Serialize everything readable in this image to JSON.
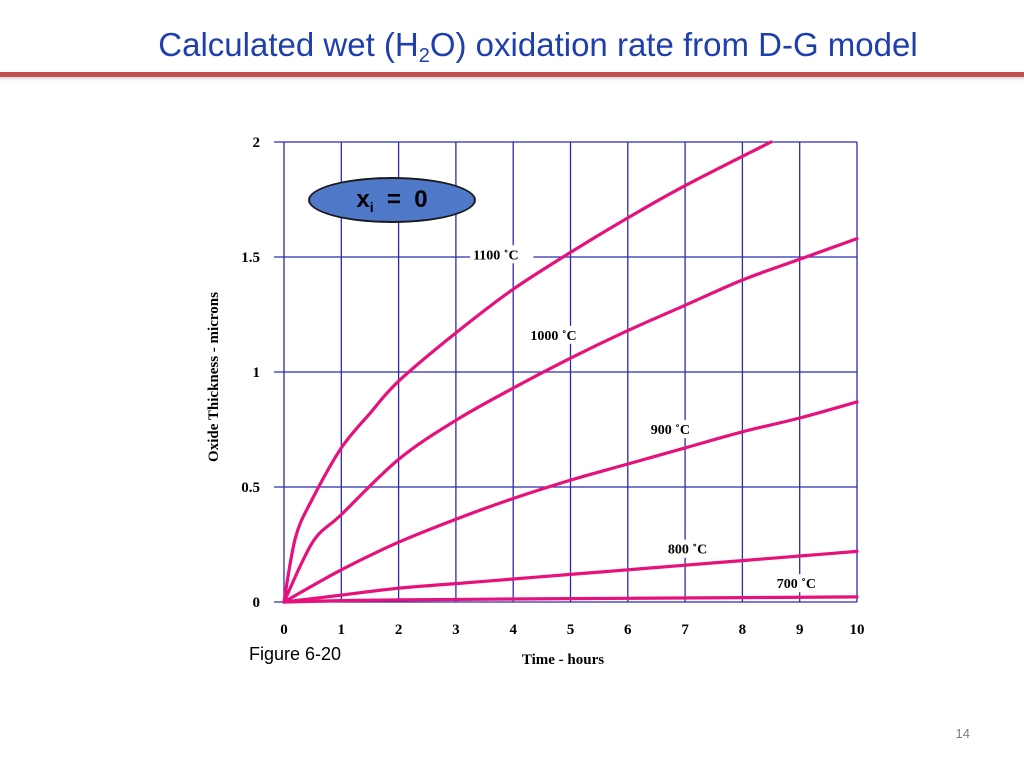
{
  "slide": {
    "title_before": "Calculated wet (H",
    "title_sub": "2",
    "title_after": "O) oxidation rate from D-G model",
    "figure_ref": "Figure 6-20",
    "page_number": "14",
    "title_color": "#1f3fae",
    "rule_color": "#c0504d"
  },
  "badge": {
    "symbol": "x",
    "subscript": "i",
    "rest": "  =  0",
    "fill_color": "#4f78c9"
  },
  "chart_data": {
    "type": "line",
    "title": "",
    "xlabel": "Time - hours",
    "ylabel": "Oxide Thickness - microns",
    "xlim": [
      0,
      10
    ],
    "ylim": [
      0,
      2
    ],
    "xticks": [
      0,
      1,
      2,
      3,
      4,
      5,
      6,
      7,
      8,
      9,
      10
    ],
    "yticks": [
      0,
      0.5,
      1,
      1.5,
      2
    ],
    "ytick_labels": [
      "0",
      "0.5",
      "1",
      "1.5",
      "2"
    ],
    "grid": true,
    "line_color": "#e6117a",
    "grid_color": "#2b2bb0",
    "series": [
      {
        "name": "1100 ˚C",
        "x": [
          0,
          0.2,
          0.5,
          1,
          1.5,
          2,
          3,
          4,
          5,
          6,
          7,
          8.5
        ],
        "y": [
          0,
          0.28,
          0.45,
          0.67,
          0.82,
          0.96,
          1.17,
          1.36,
          1.52,
          1.67,
          1.81,
          2.0
        ]
      },
      {
        "name": "1000 ˚C",
        "x": [
          0,
          0.5,
          1,
          2,
          3,
          4,
          5,
          6,
          7,
          8,
          9,
          10
        ],
        "y": [
          0,
          0.26,
          0.38,
          0.62,
          0.79,
          0.93,
          1.06,
          1.18,
          1.29,
          1.4,
          1.49,
          1.58
        ]
      },
      {
        "name": "900 ˚C",
        "x": [
          0,
          1,
          2,
          3,
          4,
          5,
          6,
          7,
          8,
          9,
          10
        ],
        "y": [
          0,
          0.14,
          0.26,
          0.36,
          0.45,
          0.53,
          0.6,
          0.67,
          0.74,
          0.8,
          0.87
        ]
      },
      {
        "name": "800 ˚C",
        "x": [
          0,
          1,
          2,
          3,
          4,
          5,
          6,
          7,
          8,
          9,
          10
        ],
        "y": [
          0,
          0.03,
          0.06,
          0.08,
          0.1,
          0.12,
          0.14,
          0.16,
          0.18,
          0.2,
          0.22
        ]
      },
      {
        "name": "700 ˚C",
        "x": [
          0,
          1,
          2,
          4,
          6,
          8,
          10
        ],
        "y": [
          0,
          0.006,
          0.009,
          0.013,
          0.016,
          0.019,
          0.022
        ]
      }
    ]
  }
}
